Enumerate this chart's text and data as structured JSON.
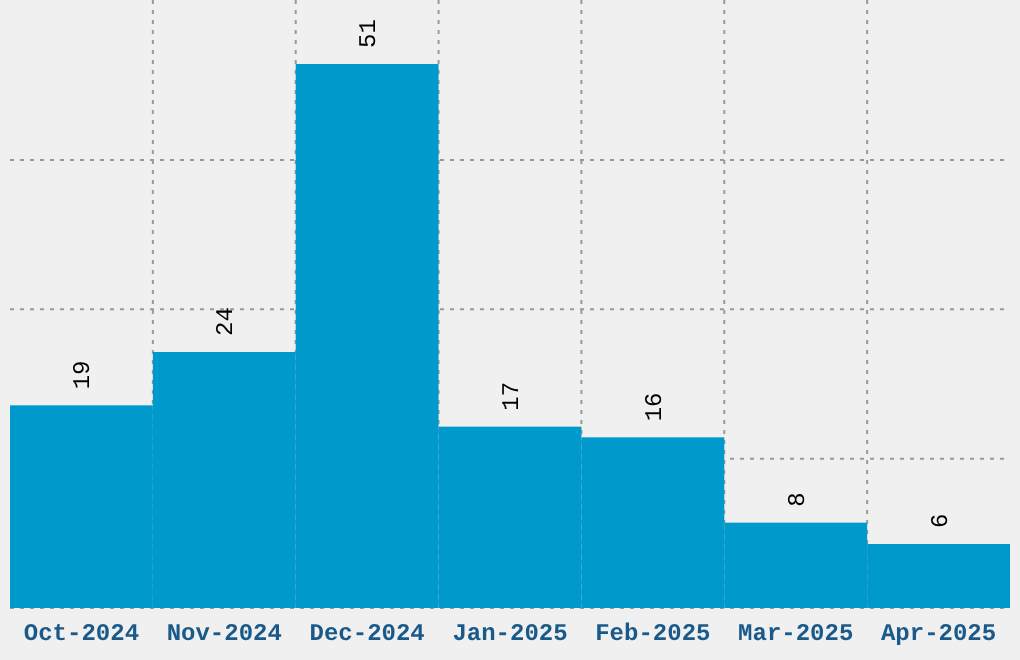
{
  "chart_data": {
    "type": "bar",
    "categories": [
      "Oct-2024",
      "Nov-2024",
      "Dec-2024",
      "Jan-2025",
      "Feb-2025",
      "Mar-2025",
      "Apr-2025"
    ],
    "values": [
      19,
      24,
      51,
      17,
      16,
      8,
      6
    ],
    "color": "#0099cc",
    "ylim": [
      0,
      57
    ],
    "yticks": [
      {
        "value": 0,
        "label": null
      },
      {
        "value": 14,
        "label": null
      },
      {
        "value": 28,
        "label": null
      },
      {
        "value": 42,
        "label": null
      }
    ],
    "tick_labels": "x",
    "grid": true,
    "data_labels": true
  }
}
